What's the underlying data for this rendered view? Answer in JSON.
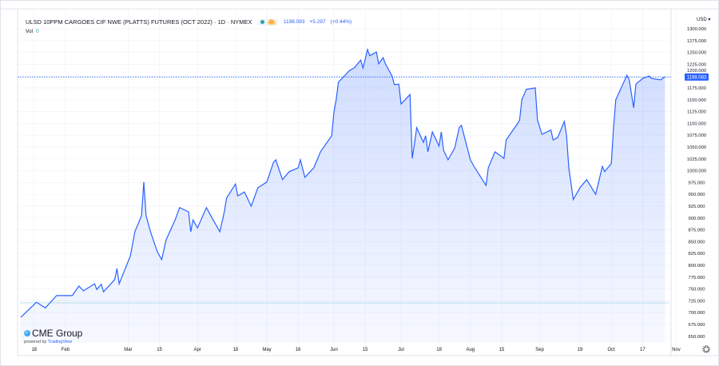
{
  "header": {
    "title": "ULSD 10PPM CARGOES CIF NWE (PLATTS) FUTURES (OCT 2022) · 1D · NYMEX",
    "market_badge": "D",
    "last_price": "1198.083",
    "change": "+5.297",
    "change_pct": "(+0.44%)",
    "vol_label": "Vol",
    "vol_value": "0"
  },
  "logo": {
    "brand": "CME Group",
    "powered_by": "powered by",
    "powered_brand": "TradingView"
  },
  "settings_icon": "gear-icon",
  "colors": {
    "line": "#2962ff",
    "fill": "#dbe4fd",
    "last_price_label": "#2962ff",
    "up": "#26a69a"
  },
  "chart_data": {
    "type": "area",
    "currency_label": "USD ▾",
    "last_value_label": "1198.083",
    "ylim": [
      650,
      1300
    ],
    "y_ticks": [
      "1300.000",
      "1275.000",
      "1250.000",
      "1225.000",
      "1200.000",
      "1175.000",
      "1150.000",
      "1125.000",
      "1100.000",
      "1075.000",
      "1050.000",
      "1025.000",
      "1000.000",
      "975.000",
      "950.000",
      "925.000",
      "900.000",
      "875.000",
      "850.000",
      "825.000",
      "800.000",
      "775.000",
      "750.000",
      "725.000",
      "700.000",
      "675.000",
      "650.000"
    ],
    "x_ticks": [
      {
        "label": "18",
        "date": "2022-01-18"
      },
      {
        "label": "Feb",
        "date": "2022-02-01"
      },
      {
        "label": "Mar",
        "date": "2022-03-01"
      },
      {
        "label": "15",
        "date": "2022-03-15"
      },
      {
        "label": "Apr",
        "date": "2022-04-01"
      },
      {
        "label": "18",
        "date": "2022-04-18"
      },
      {
        "label": "May",
        "date": "2022-05-02"
      },
      {
        "label": "16",
        "date": "2022-05-16"
      },
      {
        "label": "Jun",
        "date": "2022-06-01"
      },
      {
        "label": "15",
        "date": "2022-06-15"
      },
      {
        "label": "Jul",
        "date": "2022-07-01"
      },
      {
        "label": "18",
        "date": "2022-07-18"
      },
      {
        "label": "Aug",
        "date": "2022-08-01"
      },
      {
        "label": "15",
        "date": "2022-08-15"
      },
      {
        "label": "Sep",
        "date": "2022-09-01"
      },
      {
        "label": "19",
        "date": "2022-09-19"
      },
      {
        "label": "Oct",
        "date": "2022-10-03"
      },
      {
        "label": "17",
        "date": "2022-10-17"
      },
      {
        "label": "Nov",
        "date": "2022-11-01"
      }
    ],
    "points": [
      [
        "2022-01-12",
        690
      ],
      [
        "2022-01-19",
        722
      ],
      [
        "2022-01-23",
        710
      ],
      [
        "2022-01-28",
        736
      ],
      [
        "2022-02-04",
        736
      ],
      [
        "2022-02-07",
        756
      ],
      [
        "2022-02-09",
        746
      ],
      [
        "2022-02-14",
        761
      ],
      [
        "2022-02-15",
        749
      ],
      [
        "2022-02-17",
        760
      ],
      [
        "2022-02-18",
        744
      ],
      [
        "2022-02-23",
        770
      ],
      [
        "2022-02-24",
        793
      ],
      [
        "2022-02-25",
        761
      ],
      [
        "2022-03-02",
        820
      ],
      [
        "2022-03-04",
        871
      ],
      [
        "2022-03-07",
        905
      ],
      [
        "2022-03-08",
        976
      ],
      [
        "2022-03-09",
        905
      ],
      [
        "2022-03-11",
        871
      ],
      [
        "2022-03-14",
        829
      ],
      [
        "2022-03-16",
        812
      ],
      [
        "2022-03-18",
        854
      ],
      [
        "2022-03-22",
        896
      ],
      [
        "2022-03-24",
        922
      ],
      [
        "2022-03-28",
        913
      ],
      [
        "2022-03-29",
        871
      ],
      [
        "2022-03-30",
        896
      ],
      [
        "2022-04-01",
        879
      ],
      [
        "2022-04-05",
        922
      ],
      [
        "2022-04-08",
        896
      ],
      [
        "2022-04-11",
        871
      ],
      [
        "2022-04-13",
        913
      ],
      [
        "2022-04-14",
        942
      ],
      [
        "2022-04-18",
        972
      ],
      [
        "2022-04-19",
        947
      ],
      [
        "2022-04-22",
        955
      ],
      [
        "2022-04-25",
        925
      ],
      [
        "2022-04-28",
        964
      ],
      [
        "2022-05-02",
        976
      ],
      [
        "2022-05-05",
        1018
      ],
      [
        "2022-05-06",
        1023
      ],
      [
        "2022-05-09",
        981
      ],
      [
        "2022-05-12",
        998
      ],
      [
        "2022-05-16",
        1006
      ],
      [
        "2022-05-17",
        1023
      ],
      [
        "2022-05-19",
        986
      ],
      [
        "2022-05-23",
        1006
      ],
      [
        "2022-05-26",
        1040
      ],
      [
        "2022-05-31",
        1074
      ],
      [
        "2022-06-01",
        1124
      ],
      [
        "2022-06-02",
        1150
      ],
      [
        "2022-06-03",
        1187
      ],
      [
        "2022-06-08",
        1212
      ],
      [
        "2022-06-10",
        1217
      ],
      [
        "2022-06-13",
        1234
      ],
      [
        "2022-06-14",
        1217
      ],
      [
        "2022-06-16",
        1256
      ],
      [
        "2022-06-17",
        1243
      ],
      [
        "2022-06-20",
        1251
      ],
      [
        "2022-06-21",
        1226
      ],
      [
        "2022-06-23",
        1239
      ],
      [
        "2022-06-24",
        1226
      ],
      [
        "2022-06-27",
        1200
      ],
      [
        "2022-06-28",
        1182
      ],
      [
        "2022-06-30",
        1183
      ],
      [
        "2022-07-01",
        1141
      ],
      [
        "2022-07-05",
        1161
      ],
      [
        "2022-07-06",
        1026
      ],
      [
        "2022-07-07",
        1057
      ],
      [
        "2022-07-08",
        1091
      ],
      [
        "2022-07-11",
        1060
      ],
      [
        "2022-07-12",
        1074
      ],
      [
        "2022-07-13",
        1040
      ],
      [
        "2022-07-15",
        1082
      ],
      [
        "2022-07-18",
        1052
      ],
      [
        "2022-07-19",
        1082
      ],
      [
        "2022-07-20",
        1043
      ],
      [
        "2022-07-22",
        1023
      ],
      [
        "2022-07-25",
        1048
      ],
      [
        "2022-07-27",
        1091
      ],
      [
        "2022-07-28",
        1096
      ],
      [
        "2022-08-01",
        1023
      ],
      [
        "2022-08-03",
        1006
      ],
      [
        "2022-08-08",
        969
      ],
      [
        "2022-08-09",
        1006
      ],
      [
        "2022-08-12",
        1040
      ],
      [
        "2022-08-16",
        1026
      ],
      [
        "2022-08-17",
        1065
      ],
      [
        "2022-08-22",
        1099
      ],
      [
        "2022-08-23",
        1107
      ],
      [
        "2022-08-24",
        1150
      ],
      [
        "2022-08-26",
        1172
      ],
      [
        "2022-08-30",
        1175
      ],
      [
        "2022-08-31",
        1107
      ],
      [
        "2022-09-02",
        1077
      ],
      [
        "2022-09-06",
        1086
      ],
      [
        "2022-09-07",
        1065
      ],
      [
        "2022-09-09",
        1070
      ],
      [
        "2022-09-12",
        1104
      ],
      [
        "2022-09-13",
        1074
      ],
      [
        "2022-09-14",
        1006
      ],
      [
        "2022-09-16",
        939
      ],
      [
        "2022-09-19",
        964
      ],
      [
        "2022-09-22",
        981
      ],
      [
        "2022-09-26",
        950
      ],
      [
        "2022-09-29",
        1009
      ],
      [
        "2022-09-30",
        998
      ],
      [
        "2022-10-03",
        1015
      ],
      [
        "2022-10-04",
        1091
      ],
      [
        "2022-10-05",
        1150
      ],
      [
        "2022-10-10",
        1202
      ],
      [
        "2022-10-11",
        1192
      ],
      [
        "2022-10-13",
        1133
      ],
      [
        "2022-10-14",
        1183
      ],
      [
        "2022-10-17",
        1195
      ],
      [
        "2022-10-20",
        1200
      ],
      [
        "2022-10-21",
        1195
      ],
      [
        "2022-10-25",
        1192
      ],
      [
        "2022-10-27",
        1198.083
      ]
    ],
    "volume_values": [
      0
    ],
    "grid": true,
    "legend": "none"
  }
}
